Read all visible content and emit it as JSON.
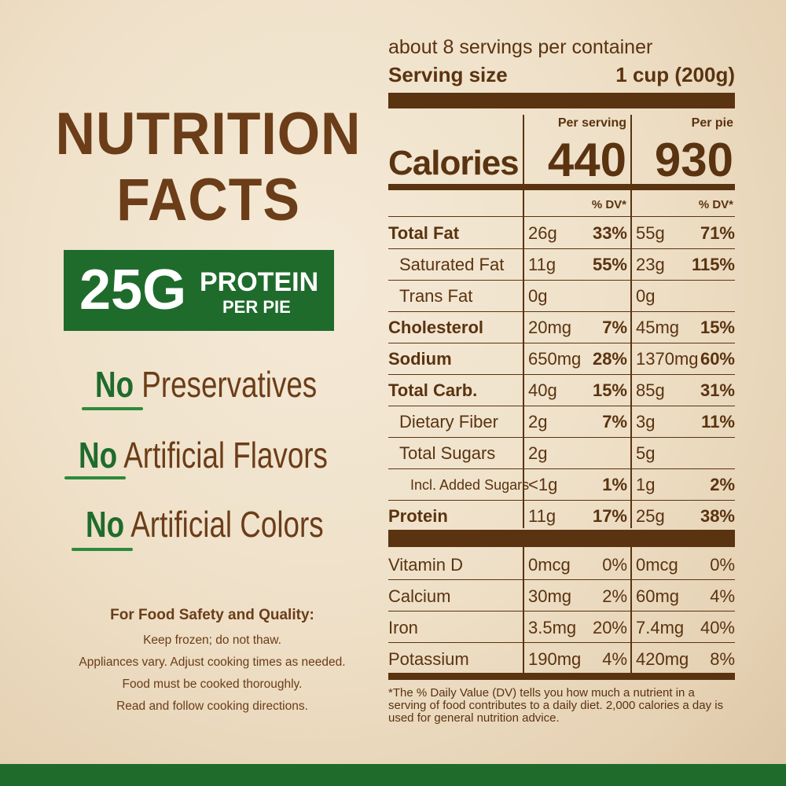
{
  "left": {
    "title_line1": "NUTRITION",
    "title_line2": "FACTS",
    "protein_big": "25G",
    "protein_word": "PROTEIN",
    "protein_sub": "PER PIE",
    "claims": [
      {
        "no": "No",
        "rest": "Preservatives"
      },
      {
        "no": "No",
        "rest": "Artificial Flavors"
      },
      {
        "no": "No",
        "rest": "Artificial Colors"
      }
    ],
    "safety_head": "For Food Safety and Quality:",
    "safety_lines": [
      "Keep frozen; do not thaw.",
      "Appliances vary. Adjust cooking times as needed.",
      "Food must be cooked thoroughly.",
      "Read and follow cooking directions."
    ]
  },
  "panel": {
    "servings": "about 8 servings per container",
    "serving_size_label": "Serving size",
    "serving_size_value": "1 cup (200g)",
    "col1_header": "Per serving",
    "col2_header": "Per pie",
    "calories_label": "Calories",
    "calories_serving": "440",
    "calories_pie": "930",
    "dv_header": "% DV*",
    "rows": [
      {
        "name": "Total Fat",
        "a1": "26g",
        "p1": "33%",
        "a2": "55g",
        "p2": "71%"
      },
      {
        "name": "Saturated Fat",
        "a1": "11g",
        "p1": "55%",
        "a2": "23g",
        "p2": "115%"
      },
      {
        "name": "Trans Fat",
        "a1": "0g",
        "p1": "",
        "a2": "0g",
        "p2": ""
      },
      {
        "name": "Cholesterol",
        "a1": "20mg",
        "p1": "7%",
        "a2": "45mg",
        "p2": "15%"
      },
      {
        "name": "Sodium",
        "a1": "650mg",
        "p1": "28%",
        "a2": "1370mg",
        "p2": "60%"
      },
      {
        "name": "Total Carb.",
        "a1": "40g",
        "p1": "15%",
        "a2": "85g",
        "p2": "31%"
      },
      {
        "name": "Dietary Fiber",
        "a1": "2g",
        "p1": "7%",
        "a2": "3g",
        "p2": "11%"
      },
      {
        "name": "Total Sugars",
        "a1": "2g",
        "p1": "",
        "a2": "5g",
        "p2": ""
      },
      {
        "name": "Incl. Added Sugars",
        "a1": "<1g",
        "p1": "1%",
        "a2": "1g",
        "p2": "2%"
      },
      {
        "name": "Protein",
        "a1": "11g",
        "p1": "17%",
        "a2": "25g",
        "p2": "38%"
      }
    ],
    "micros": [
      {
        "name": "Vitamin D",
        "a1": "0mcg",
        "p1": "0%",
        "a2": "0mcg",
        "p2": "0%"
      },
      {
        "name": "Calcium",
        "a1": "30mg",
        "p1": "2%",
        "a2": "60mg",
        "p2": "4%"
      },
      {
        "name": "Iron",
        "a1": "3.5mg",
        "p1": "20%",
        "a2": "7.4mg",
        "p2": "40%"
      },
      {
        "name": "Potassium",
        "a1": "190mg",
        "p1": "4%",
        "a2": "420mg",
        "p2": "8%"
      }
    ],
    "footnote": "*The % Daily Value (DV) tells you how much a nutrient in a serving of food contributes to a daily diet. 2,000 calories a day is used for general nutrition advice."
  },
  "colors": {
    "brown": "#5a3310",
    "green": "#1f6b2c"
  }
}
